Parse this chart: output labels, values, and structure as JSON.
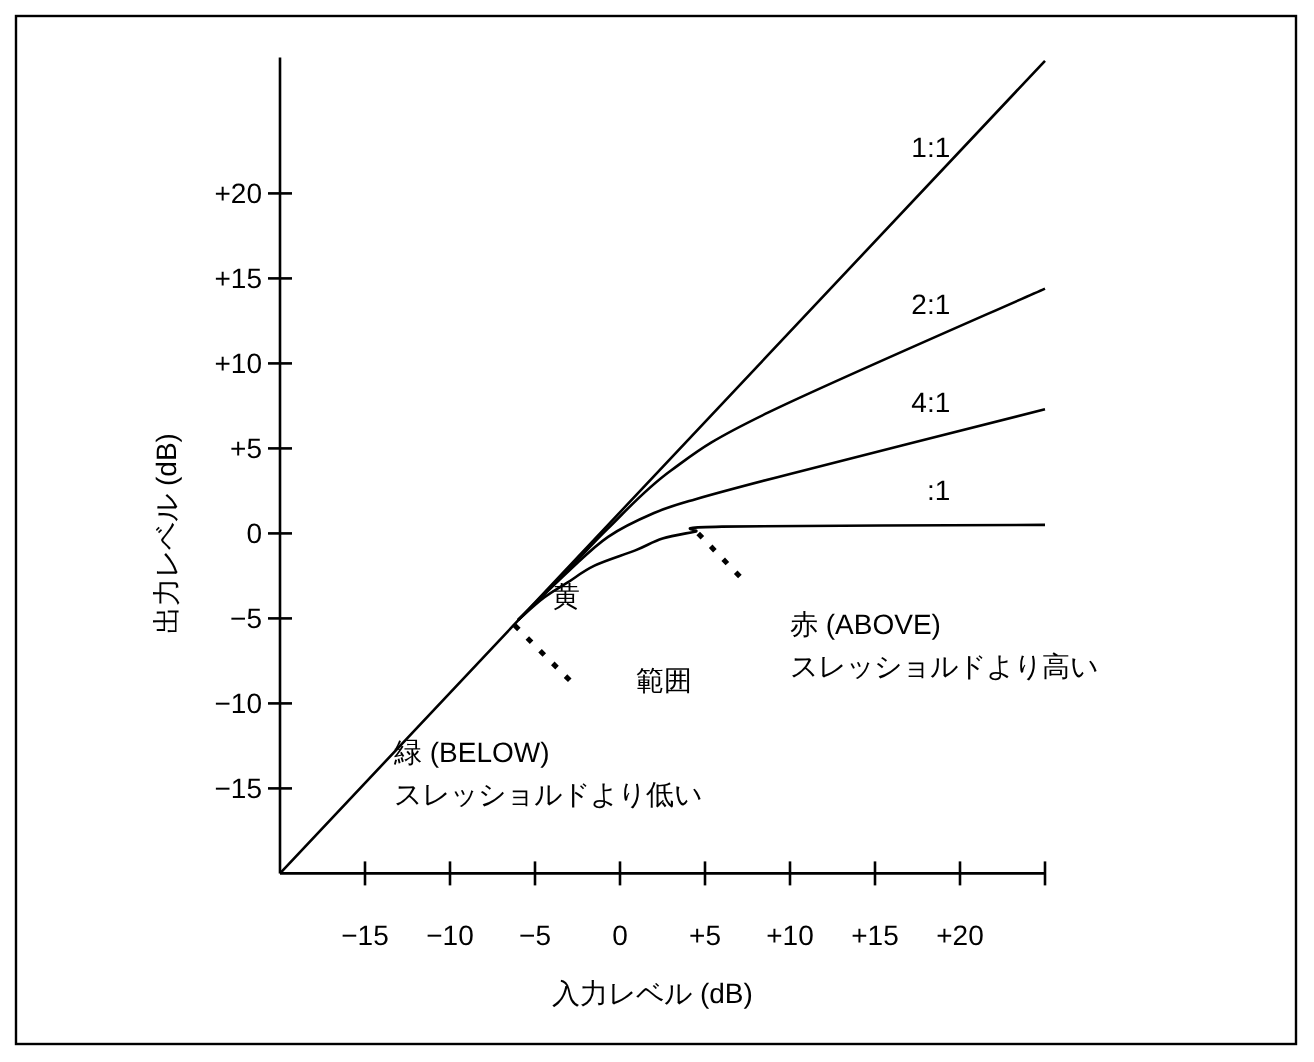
{
  "chart_data": {
    "type": "line",
    "xlabel": "入力レベル (dB)",
    "ylabel": "出力レベル (dB)",
    "xlim": [
      -20,
      25
    ],
    "ylim": [
      -20,
      28
    ],
    "xticks": [
      {
        "value": -15,
        "label": "−15"
      },
      {
        "value": -10,
        "label": "−10"
      },
      {
        "value": -5,
        "label": "−5"
      },
      0,
      {
        "value": 5,
        "label": "+5"
      },
      {
        "value": 10,
        "label": "+10"
      },
      {
        "value": 15,
        "label": "+15"
      },
      {
        "value": 20,
        "label": "+20"
      }
    ],
    "yticks": [
      {
        "value": -15,
        "label": "−15"
      },
      {
        "value": -10,
        "label": "−10"
      },
      {
        "value": -5,
        "label": "−5"
      },
      0,
      {
        "value": 5,
        "label": "+5"
      },
      {
        "value": 10,
        "label": "+10"
      },
      {
        "value": 15,
        "label": "+15"
      },
      {
        "value": 20,
        "label": "+20"
      }
    ],
    "grid": false,
    "marker": "none",
    "line_style": "solid",
    "series": [
      {
        "name": "1:1",
        "color": "#000000",
        "x": [
          -20,
          25
        ],
        "values": [
          -20,
          27.8
        ]
      },
      {
        "name": "2:1",
        "color": "#000000",
        "x": [
          -6,
          -3,
          -0.7,
          3,
          8.7,
          25
        ],
        "values": [
          -5.1,
          -2.1,
          0.3,
          3.7,
          7.1,
          14.4
        ]
      },
      {
        "name": "4:1",
        "color": "#000000",
        "x": [
          -6,
          -3,
          -0.7,
          2,
          4.4,
          10,
          25
        ],
        "values": [
          -5.1,
          -2.2,
          -0.2,
          1.2,
          2.0,
          3.5,
          7.3
        ]
      },
      {
        "name": ":1",
        "color": "#000000",
        "x": [
          -6,
          -4.5,
          -3.1,
          -1.5,
          0.9,
          2.5,
          4.4,
          6,
          25
        ],
        "values": [
          -5.1,
          -3.8,
          -2.9,
          -1.9,
          -1.0,
          -0.3,
          0.1,
          0.4,
          0.5
        ]
      }
    ],
    "annotations": [
      "黄",
      "範囲",
      "赤 (ABOVE)",
      "スレッショルドより高い",
      "緑 (BELOW)",
      "スレッショルドより低い"
    ]
  }
}
